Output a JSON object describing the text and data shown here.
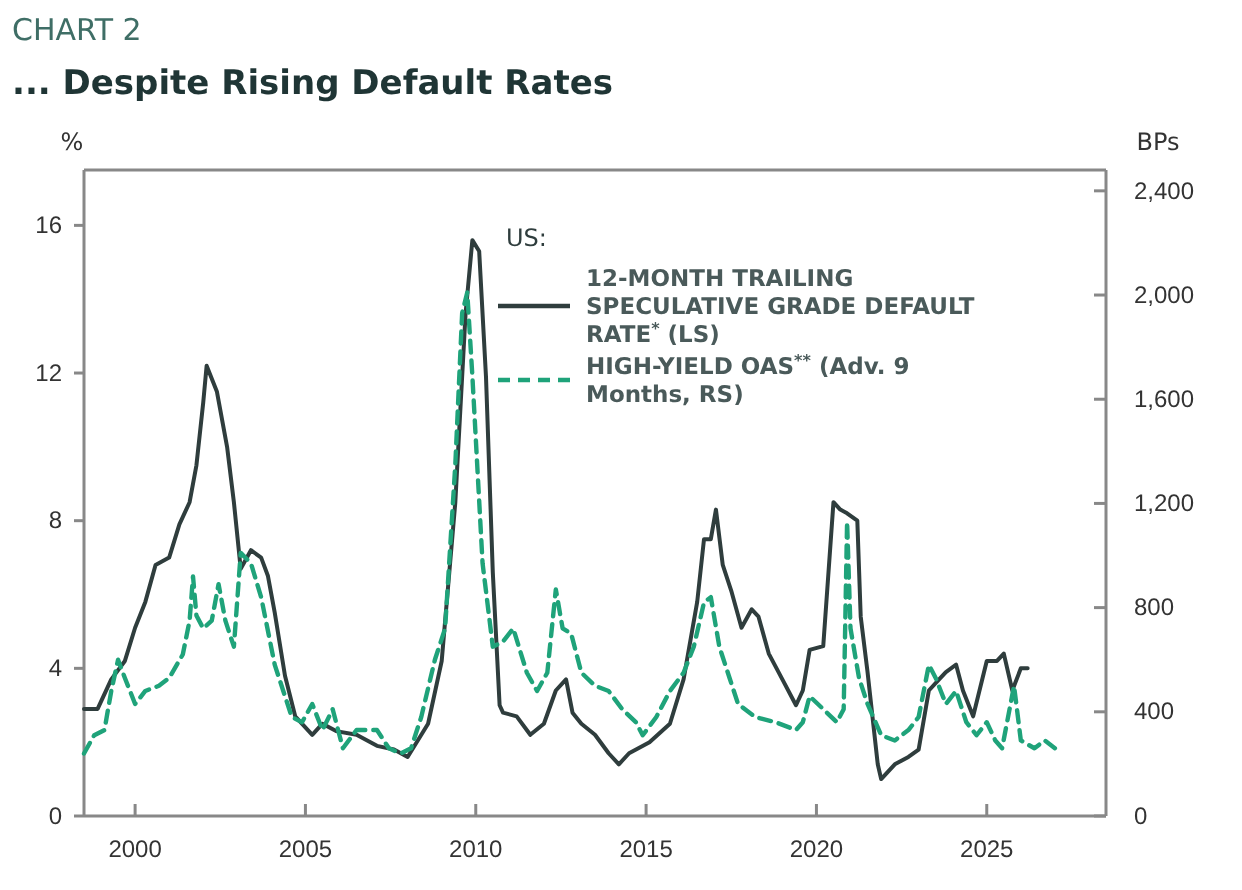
{
  "chart_data": {
    "type": "line",
    "title": "CHART 2",
    "subtitle": "... Despite Rising Default Rates",
    "ylabel": "%",
    "y2label": "BPs",
    "legend_title": "US:",
    "legend": "top right",
    "xlim": [
      1998.5,
      2028.5
    ],
    "xticks": [
      2000,
      2005,
      2010,
      2015,
      2020,
      2025
    ],
    "ylim": [
      0,
      17.5
    ],
    "yticks": [
      0,
      4,
      8,
      12,
      16
    ],
    "y2lim": [
      0,
      2480
    ],
    "y2ticks": [
      0,
      {
        "value": 400,
        "label": "400"
      },
      {
        "value": 800,
        "label": "800"
      },
      {
        "value": 1200,
        "label": "1,200"
      },
      {
        "value": 1600,
        "label": "1,600"
      },
      {
        "value": 2000,
        "label": "2,000"
      },
      {
        "value": 2400,
        "label": "2,400"
      }
    ],
    "series": [
      {
        "name": "12-MONTH TRAILING SPECULATIVE GRADE DEFAULT RATE$^{*}$ (LS)",
        "color": "#2f3d3d",
        "line_style": "solid",
        "axis": "y",
        "x": [
          1998.5,
          1998.9,
          1999.3,
          1999.7,
          2000.0,
          2000.3,
          2000.6,
          2001.0,
          2001.3,
          2001.6,
          2001.8,
          2002.0,
          2002.1,
          2002.4,
          2002.7,
          2002.9,
          2003.1,
          2003.4,
          2003.7,
          2003.9,
          2004.1,
          2004.4,
          2004.7,
          2005.2,
          2005.5,
          2005.9,
          2006.5,
          2007.1,
          2007.6,
          2008.0,
          2008.6,
          2009.0,
          2009.4,
          2009.7,
          2009.9,
          2010.1,
          2010.3,
          2010.5,
          2010.7,
          2010.8,
          2011.2,
          2011.6,
          2012.0,
          2012.35,
          2012.65,
          2012.84,
          2013.1,
          2013.5,
          2013.9,
          2014.2,
          2014.5,
          2015.1,
          2015.7,
          2016.1,
          2016.5,
          2016.7,
          2016.9,
          2017.05,
          2017.25,
          2017.5,
          2017.8,
          2018.1,
          2018.3,
          2018.6,
          2019.0,
          2019.4,
          2019.6,
          2019.8,
          2020.2,
          2020.5,
          2020.7,
          2020.9,
          2021.2,
          2021.3,
          2021.5,
          2021.8,
          2021.9,
          2022.3,
          2022.7,
          2023.0,
          2023.3,
          2023.6,
          2023.8,
          2024.1,
          2024.3,
          2024.6,
          2025.0,
          2025.3,
          2025.5,
          2025.75,
          2026.0,
          2026.2
        ],
        "values": [
          2.9,
          2.9,
          3.7,
          4.2,
          5.1,
          5.8,
          6.8,
          7.0,
          7.9,
          8.5,
          9.5,
          11.2,
          12.2,
          11.5,
          10.0,
          8.5,
          6.7,
          7.2,
          7.0,
          6.5,
          5.5,
          3.8,
          2.7,
          2.2,
          2.5,
          2.3,
          2.2,
          1.9,
          1.8,
          1.6,
          2.5,
          4.2,
          8.5,
          13.6,
          15.6,
          15.3,
          11.9,
          6.6,
          3.0,
          2.8,
          2.7,
          2.2,
          2.5,
          3.4,
          3.7,
          2.8,
          2.5,
          2.2,
          1.7,
          1.4,
          1.7,
          2.0,
          2.5,
          3.7,
          5.8,
          7.5,
          7.5,
          8.3,
          6.8,
          6.1,
          5.1,
          5.6,
          5.4,
          4.4,
          3.7,
          3.0,
          3.4,
          4.5,
          4.6,
          8.5,
          8.3,
          8.2,
          8.0,
          5.4,
          3.9,
          1.4,
          1.0,
          1.4,
          1.6,
          1.8,
          3.4,
          3.7,
          3.9,
          4.1,
          3.4,
          2.7,
          4.2,
          4.2,
          4.4,
          3.4,
          4.0,
          4.0
        ]
      },
      {
        "name": "HIGH-YIELD OAS$^{**}$ (Adv. 9 Months, RS)",
        "color": "#1fa37a",
        "line_style": "dashed",
        "axis": "y2",
        "x": [
          1998.5,
          1998.8,
          1999.1,
          1999.3,
          1999.5,
          1999.7,
          2000.0,
          2000.3,
          2000.7,
          2001.0,
          2001.4,
          2001.6,
          2001.7,
          2001.8,
          2002.0,
          2002.25,
          2002.45,
          2002.65,
          2002.9,
          2003.1,
          2003.4,
          2003.7,
          2004.1,
          2004.4,
          2004.6,
          2004.9,
          2005.2,
          2005.5,
          2005.8,
          2006.1,
          2006.5,
          2007.1,
          2007.45,
          2007.8,
          2008.1,
          2008.4,
          2008.8,
          2009.1,
          2009.4,
          2009.6,
          2009.75,
          2009.9,
          2010.0,
          2010.2,
          2010.5,
          2010.8,
          2011.1,
          2011.5,
          2011.8,
          2012.1,
          2012.35,
          2012.55,
          2012.8,
          2013.1,
          2013.5,
          2013.9,
          2014.3,
          2014.7,
          2014.9,
          2015.3,
          2015.7,
          2016.1,
          2016.4,
          2016.7,
          2016.9,
          2017.15,
          2017.45,
          2017.7,
          2018.2,
          2018.8,
          2019.4,
          2019.6,
          2019.8,
          2020.2,
          2020.6,
          2020.8,
          2020.9,
          2021.0,
          2021.25,
          2021.5,
          2021.9,
          2022.3,
          2022.7,
          2023.0,
          2023.3,
          2023.5,
          2023.8,
          2024.1,
          2024.4,
          2024.7,
          2025.0,
          2025.25,
          2025.45,
          2025.8,
          2026.0,
          2026.4,
          2026.7,
          2027.0
        ],
        "values": [
          240,
          310,
          330,
          480,
          600,
          530,
          430,
          480,
          500,
          530,
          620,
          750,
          920,
          770,
          720,
          750,
          890,
          750,
          650,
          1010,
          970,
          840,
          580,
          460,
          380,
          360,
          430,
          330,
          410,
          260,
          330,
          330,
          260,
          240,
          260,
          380,
          600,
          720,
          1350,
          1930,
          2010,
          1690,
          1450,
          970,
          650,
          670,
          720,
          550,
          480,
          550,
          870,
          720,
          700,
          550,
          500,
          480,
          410,
          360,
          310,
          380,
          480,
          550,
          650,
          820,
          840,
          650,
          530,
          430,
          380,
          360,
          330,
          360,
          460,
          410,
          360,
          410,
          1130,
          720,
          530,
          430,
          310,
          290,
          330,
          380,
          580,
          530,
          430,
          480,
          360,
          310,
          360,
          290,
          260,
          500,
          290,
          260,
          290,
          260
        ]
      }
    ]
  }
}
